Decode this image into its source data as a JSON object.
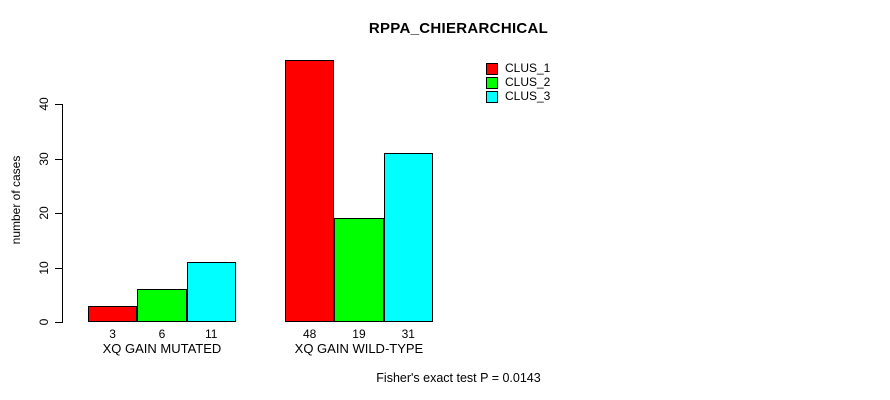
{
  "title": "RPPA_CHIERARCHICAL",
  "y_axis": {
    "label": "number of cases",
    "ticks": [
      0,
      10,
      20,
      30,
      40
    ]
  },
  "legend": {
    "position": "top-right",
    "items": [
      {
        "label": "CLUS_1",
        "color": "#FF0000"
      },
      {
        "label": "CLUS_2",
        "color": "#00FF00"
      },
      {
        "label": "CLUS_3",
        "color": "#00FFFF"
      }
    ]
  },
  "footnote": "Fisher's exact test P = 0.0143",
  "chart_data": {
    "type": "bar",
    "grouped": true,
    "title": "RPPA_CHIERARCHICAL",
    "xlabel": "",
    "ylabel": "number of cases",
    "ylim": [
      0,
      48
    ],
    "yticks": [
      0,
      10,
      20,
      30,
      40
    ],
    "grid": false,
    "legend_position": "top-right",
    "bar_value_labels": true,
    "categories": [
      "XQ GAIN MUTATED",
      "XQ GAIN WILD-TYPE"
    ],
    "series": [
      {
        "name": "CLUS_1",
        "color": "#FF0000",
        "values": [
          3,
          48
        ]
      },
      {
        "name": "CLUS_2",
        "color": "#00FF00",
        "values": [
          6,
          19
        ]
      },
      {
        "name": "CLUS_3",
        "color": "#00FFFF",
        "values": [
          11,
          31
        ]
      }
    ],
    "annotation": "Fisher's exact test P = 0.0143"
  }
}
